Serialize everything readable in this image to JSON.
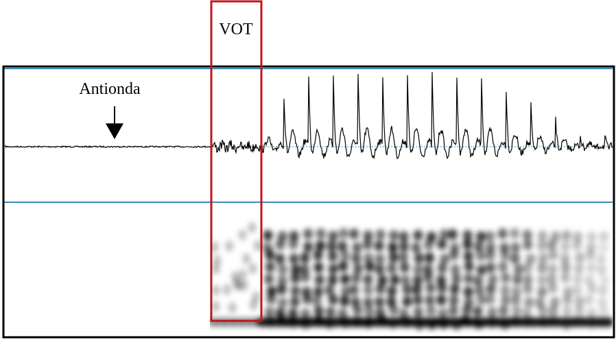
{
  "labels": {
    "vot": "VOT",
    "antionda": "Antionda"
  }
}
